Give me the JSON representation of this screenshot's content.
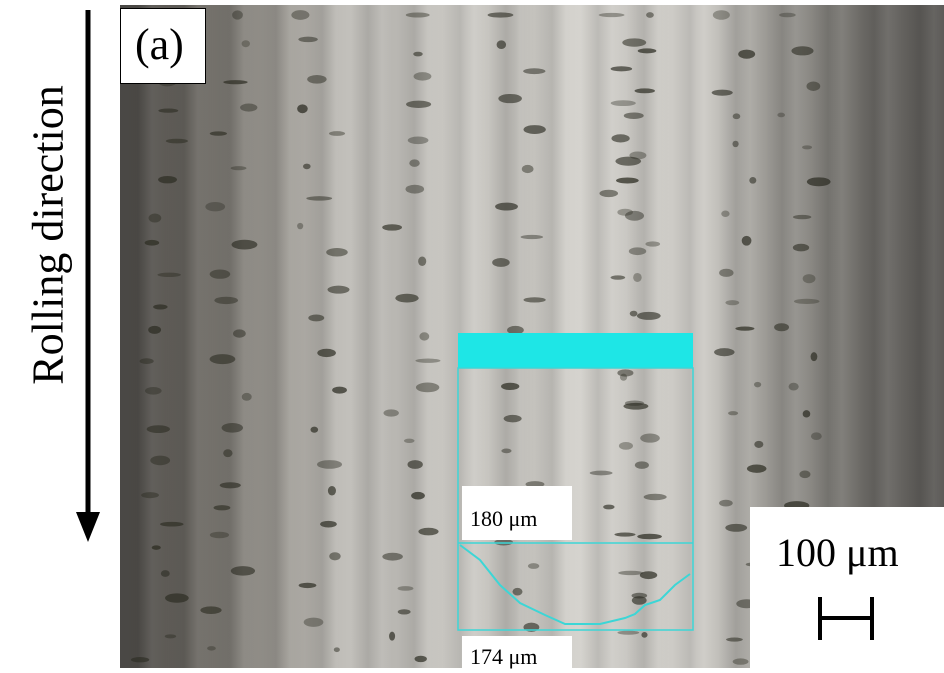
{
  "figure": {
    "panel_label": "(a)",
    "direction_label": "Rolling direction",
    "profile_width_label": "180 μm",
    "profile_bottom_label": "174 μm",
    "scale_bar_label": "100 μm"
  }
}
